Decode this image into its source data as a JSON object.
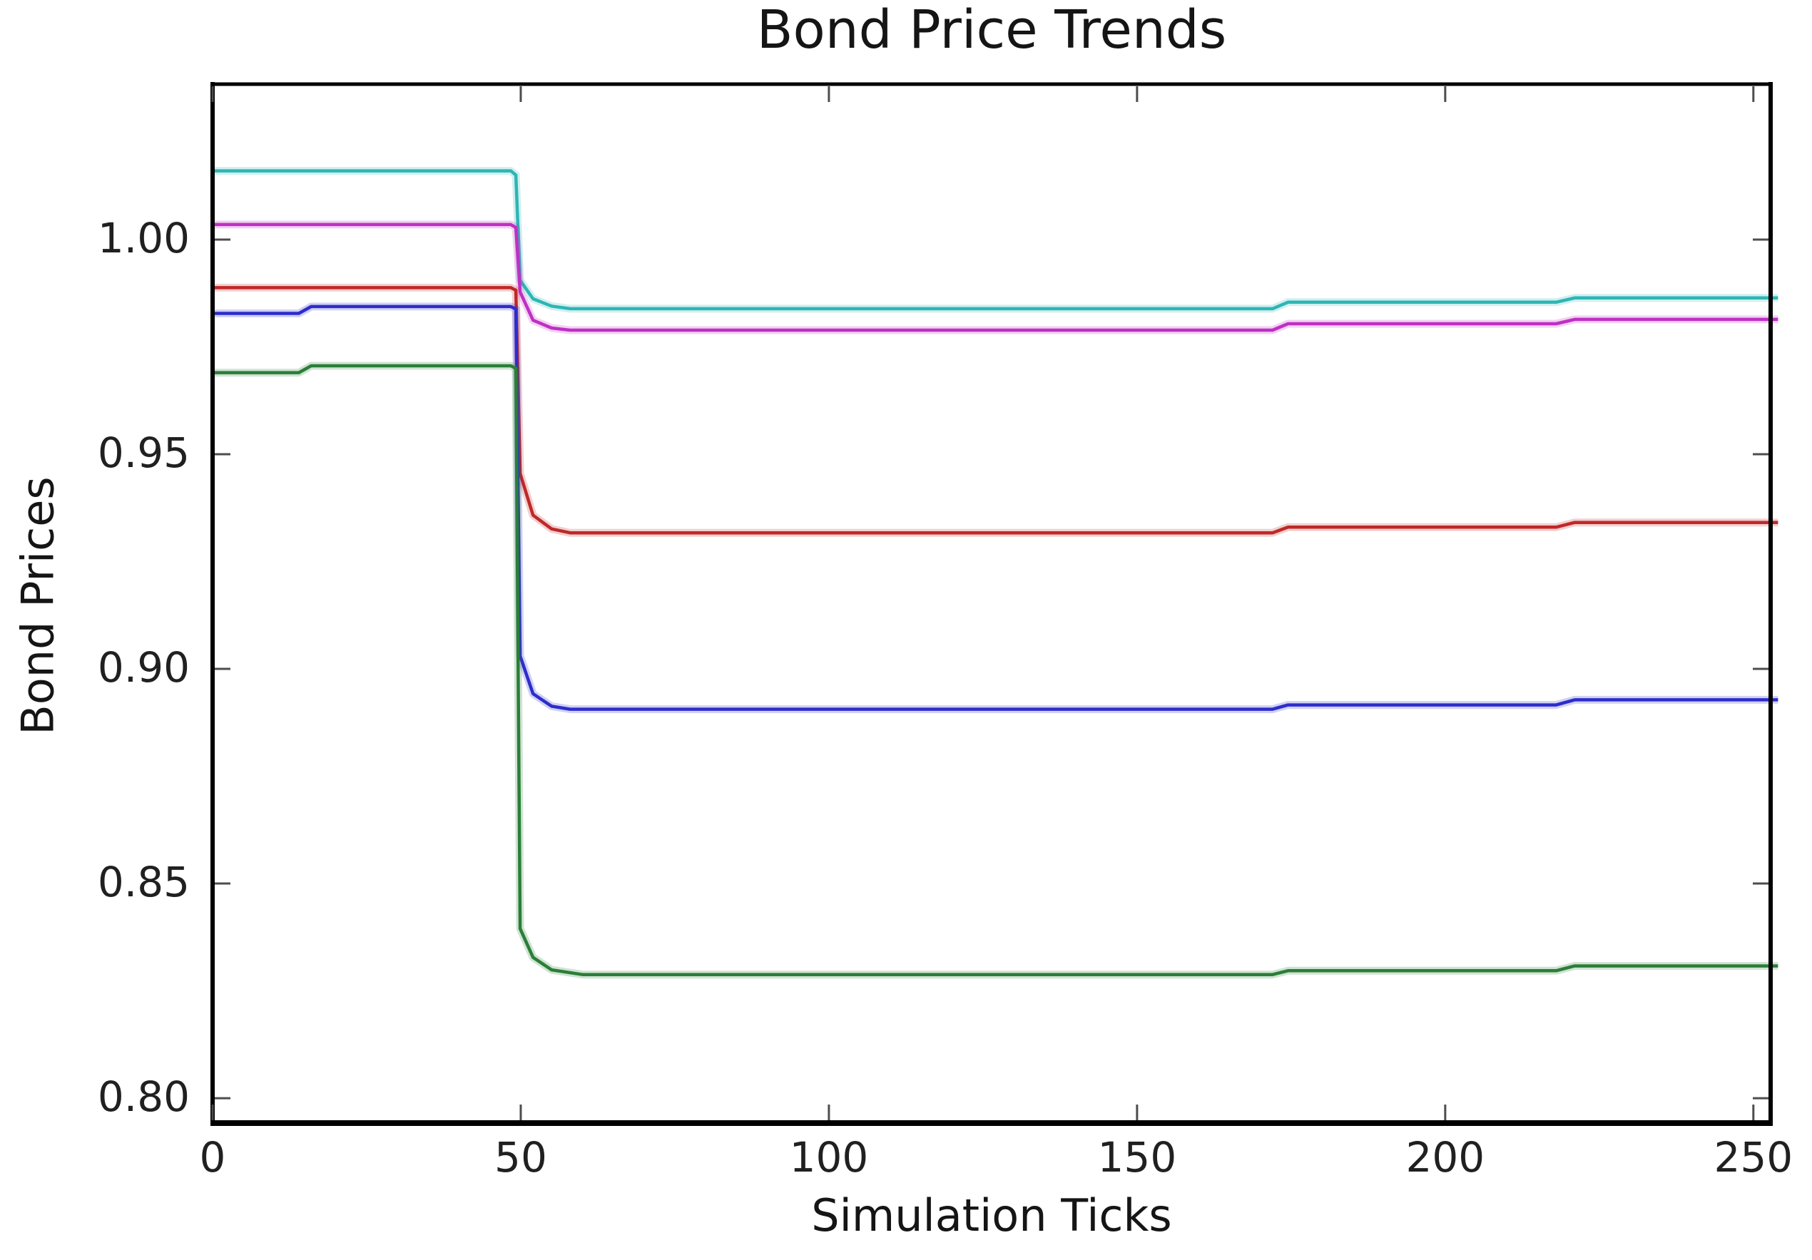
{
  "title": "Bond Price Trends",
  "chart_data": {
    "type": "line",
    "title": "Bond Price Trends",
    "xlabel": "Simulation Ticks",
    "ylabel": "Bond Prices",
    "xlim": [
      0,
      252.8
    ],
    "ylim": [
      0.7942,
      1.0362
    ],
    "grid": false,
    "legend": null,
    "background_color": "#ffffff",
    "spine_color": "#000000",
    "tick_color": "#4d4d4d",
    "x_ticks": {
      "values": [
        0,
        50,
        100,
        150,
        200,
        250
      ],
      "labels": [
        "0",
        "50",
        "100",
        "150",
        "200",
        "250"
      ]
    },
    "y_ticks": {
      "values": [
        0.8,
        0.85,
        0.9,
        0.95,
        1.0
      ],
      "labels": [
        "0.80",
        "0.85",
        "0.90",
        "0.95",
        "1.00"
      ]
    },
    "series": [
      {
        "name": "bond-cyan",
        "color": "#2eb5b5",
        "points": [
          [
            0,
            1.016
          ],
          [
            48.4,
            1.016
          ],
          [
            49.2,
            1.015
          ],
          [
            49.9,
            0.9905
          ],
          [
            52,
            0.9862
          ],
          [
            55,
            0.9845
          ],
          [
            58,
            0.9839
          ],
          [
            172,
            0.9839
          ],
          [
            174.5,
            0.9854
          ],
          [
            218,
            0.9854
          ],
          [
            221,
            0.9864
          ],
          [
            254,
            0.9864
          ]
        ]
      },
      {
        "name": "bond-magenta",
        "color": "#bf30c4",
        "points": [
          [
            0,
            1.0035
          ],
          [
            48.4,
            1.0035
          ],
          [
            49.2,
            1.0028
          ],
          [
            49.9,
            0.9878
          ],
          [
            52,
            0.9812
          ],
          [
            55,
            0.9794
          ],
          [
            58,
            0.9789
          ],
          [
            172,
            0.9789
          ],
          [
            174.5,
            0.9804
          ],
          [
            218,
            0.9804
          ],
          [
            221,
            0.9814
          ],
          [
            254,
            0.9814
          ]
        ]
      },
      {
        "name": "bond-red",
        "color": "#c02828",
        "points": [
          [
            0,
            0.9888
          ],
          [
            48.4,
            0.9888
          ],
          [
            49.2,
            0.9882
          ],
          [
            49.9,
            0.9455
          ],
          [
            52,
            0.9358
          ],
          [
            55,
            0.9326
          ],
          [
            58,
            0.9317
          ],
          [
            172,
            0.9317
          ],
          [
            174.5,
            0.933
          ],
          [
            218,
            0.933
          ],
          [
            221,
            0.9341
          ],
          [
            254,
            0.9341
          ]
        ]
      },
      {
        "name": "bond-blue",
        "color": "#2d2dcc",
        "points": [
          [
            0,
            0.9828
          ],
          [
            14,
            0.9828
          ],
          [
            16,
            0.9844
          ],
          [
            48.4,
            0.9844
          ],
          [
            49.2,
            0.9838
          ],
          [
            49.9,
            0.903
          ],
          [
            52,
            0.8942
          ],
          [
            55,
            0.8913
          ],
          [
            58,
            0.8906
          ],
          [
            172,
            0.8906
          ],
          [
            174.5,
            0.8916
          ],
          [
            218,
            0.8916
          ],
          [
            221,
            0.8928
          ],
          [
            254,
            0.8928
          ]
        ]
      },
      {
        "name": "bond-green",
        "color": "#2b7e38",
        "points": [
          [
            0,
            0.969
          ],
          [
            14,
            0.969
          ],
          [
            16,
            0.9706
          ],
          [
            48.4,
            0.9706
          ],
          [
            49.2,
            0.97
          ],
          [
            49.9,
            0.8395
          ],
          [
            52,
            0.8328
          ],
          [
            55,
            0.8299
          ],
          [
            60,
            0.8288
          ],
          [
            172,
            0.8288
          ],
          [
            174.5,
            0.8297
          ],
          [
            218,
            0.8297
          ],
          [
            221,
            0.8308
          ],
          [
            254,
            0.8308
          ]
        ]
      }
    ]
  }
}
